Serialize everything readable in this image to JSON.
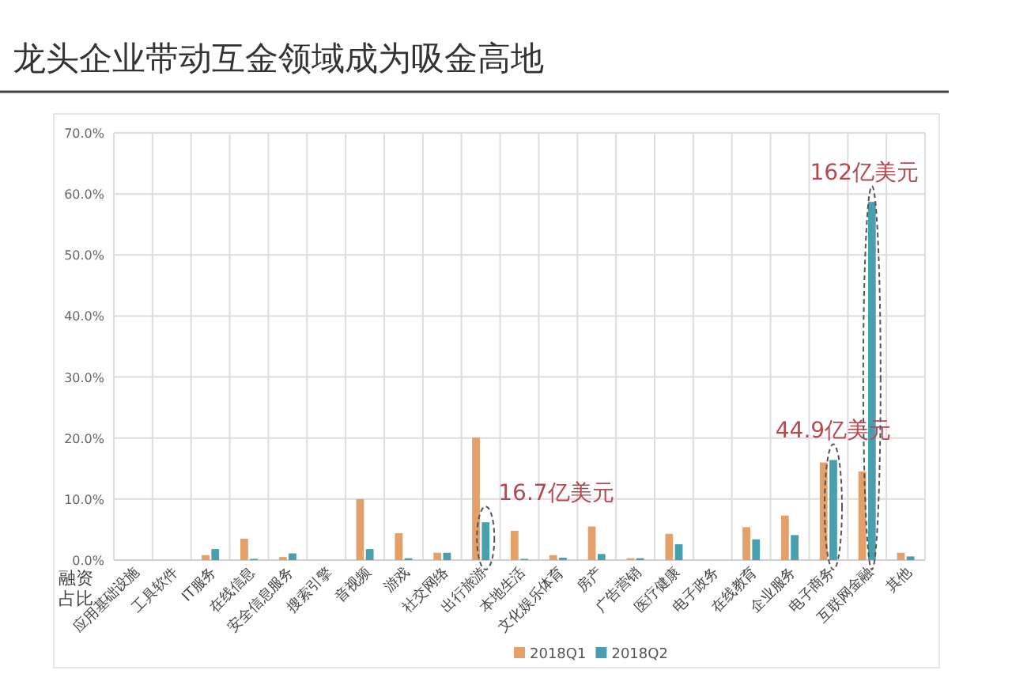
{
  "chart_data": {
    "type": "bar",
    "title": "龙头企业带动互金领域成为吸金高地",
    "ylabel": "融资占比",
    "categories": [
      "应用基础设施",
      "工具软件",
      "IT服务",
      "在线信息",
      "安全信息服务",
      "搜索引擎",
      "音视频",
      "游戏",
      "社交网络",
      "出行旅游",
      "本地生活",
      "文化娱乐体育",
      "房产",
      "广告营销",
      "医疗健康",
      "电子政务",
      "在线教育",
      "企业服务",
      "电子商务",
      "互联网金融",
      "其他"
    ],
    "series": [
      {
        "name": "2018Q1",
        "color": "#e3a06a",
        "values": [
          0,
          0,
          0.8,
          3.5,
          0.5,
          0,
          10.0,
          4.4,
          1.2,
          20.1,
          4.8,
          0.8,
          5.5,
          0.3,
          4.3,
          0,
          5.4,
          7.3,
          16.0,
          14.5,
          1.2
        ]
      },
      {
        "name": "2018Q2",
        "color": "#4a9fae",
        "values": [
          0,
          0,
          1.8,
          0.2,
          1.1,
          0,
          1.8,
          0.3,
          1.2,
          6.2,
          0.2,
          0.4,
          1.0,
          0.3,
          2.6,
          0,
          3.4,
          4.1,
          16.4,
          58.7,
          0.6
        ]
      }
    ],
    "ylim": [
      0,
      70
    ],
    "yticks": [
      {
        "value": 0,
        "label": "0.0%"
      },
      {
        "value": 10,
        "label": "10.0%"
      },
      {
        "value": 20,
        "label": "20.0%"
      },
      {
        "value": 30,
        "label": "30.0%"
      },
      {
        "value": 40,
        "label": "40.0%"
      },
      {
        "value": 50,
        "label": "50.0%"
      },
      {
        "value": 60,
        "label": "60.0%"
      },
      {
        "value": 70,
        "label": "70.0%"
      }
    ],
    "grid": true,
    "legend": "bottom",
    "annotations": [
      {
        "text": "16.7亿美元",
        "x": "出行旅游",
        "y": 6.2
      },
      {
        "text": "44.9亿美元",
        "x": "电子商务",
        "y": 16.4
      },
      {
        "text": "162亿美元",
        "x": "互联网金融",
        "y": 58.7
      }
    ]
  }
}
